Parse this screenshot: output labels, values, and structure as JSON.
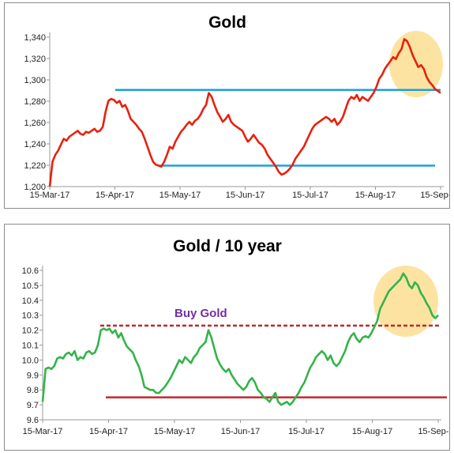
{
  "chart_data": [
    {
      "type": "line",
      "title": "Gold",
      "xlabel": "",
      "ylabel": "",
      "x_tick_labels": [
        "15-Mar-17",
        "15-Apr-17",
        "15-May-17",
        "15-Jun-17",
        "15-Jul-17",
        "15-Aug-17",
        "15-Sep-17"
      ],
      "y_tick_labels": [
        "1,200",
        "1,220",
        "1,240",
        "1,260",
        "1,280",
        "1,300",
        "1,320",
        "1,340"
      ],
      "ylim": [
        1200,
        1350
      ],
      "grid": false,
      "line_color": "#e8210e",
      "series": [
        {
          "values": [
            1200,
            1225,
            1232,
            1236,
            1242,
            1248,
            1246,
            1250,
            1252,
            1254,
            1256,
            1253,
            1252,
            1255,
            1254,
            1256,
            1258,
            1255,
            1256,
            1260,
            1275,
            1286,
            1288,
            1287,
            1284,
            1286,
            1280,
            1282,
            1276,
            1268,
            1265,
            1262,
            1258,
            1255,
            1248,
            1240,
            1232,
            1225,
            1222,
            1221,
            1220,
            1225,
            1232,
            1240,
            1238,
            1245,
            1250,
            1255,
            1258,
            1262,
            1265,
            1262,
            1266,
            1268,
            1272,
            1278,
            1282,
            1294,
            1290,
            1282,
            1275,
            1270,
            1265,
            1268,
            1272,
            1265,
            1262,
            1260,
            1258,
            1256,
            1250,
            1245,
            1248,
            1252,
            1248,
            1244,
            1242,
            1238,
            1232,
            1228,
            1224,
            1220,
            1215,
            1212,
            1213,
            1215,
            1218,
            1222,
            1228,
            1232,
            1236,
            1240,
            1246,
            1252,
            1258,
            1262,
            1264,
            1266,
            1268,
            1270,
            1268,
            1265,
            1268,
            1262,
            1265,
            1270,
            1278,
            1286,
            1290,
            1288,
            1292,
            1286,
            1290,
            1288,
            1286,
            1290,
            1294,
            1300,
            1308,
            1312,
            1318,
            1322,
            1326,
            1330,
            1328,
            1334,
            1338,
            1348,
            1346,
            1340,
            1332,
            1326,
            1320,
            1322,
            1318,
            1310,
            1305,
            1302,
            1298,
            1296,
            1294
          ]
        }
      ],
      "reference_lines": [
        {
          "y": 1297,
          "color": "#1ba1d8"
        },
        {
          "y": 1221,
          "color": "#1ba1d8"
        }
      ],
      "highlight_color": "#fde3a2"
    },
    {
      "type": "line",
      "title": "Gold / 10 year",
      "xlabel": "",
      "ylabel": "",
      "x_tick_labels": [
        "15-Mar-17",
        "15-Apr-17",
        "15-May-17",
        "15-Jun-17",
        "15-Jul-17",
        "15-Aug-17",
        "15-Sep-17"
      ],
      "y_tick_labels": [
        "9.6",
        "9.7",
        "9.8",
        "9.9",
        "10.0",
        "10.1",
        "10.2",
        "10.3",
        "10.4",
        "10.5",
        "10.6"
      ],
      "ylim": [
        9.6,
        10.6
      ],
      "grid": false,
      "line_color": "#33b44a",
      "series": [
        {
          "values": [
            9.72,
            9.94,
            9.95,
            9.94,
            9.96,
            10.01,
            10.02,
            10.01,
            10.04,
            10.05,
            10.03,
            10.06,
            10.0,
            10.02,
            10.01,
            10.05,
            10.06,
            10.04,
            10.05,
            10.1,
            10.2,
            10.21,
            10.2,
            10.21,
            10.18,
            10.2,
            10.15,
            10.18,
            10.13,
            10.09,
            10.07,
            10.05,
            10.0,
            9.96,
            9.9,
            9.82,
            9.81,
            9.8,
            9.8,
            9.78,
            9.78,
            9.8,
            9.82,
            9.85,
            9.88,
            9.92,
            9.96,
            10.0,
            9.98,
            10.02,
            10.0,
            9.98,
            10.02,
            10.04,
            10.08,
            10.1,
            10.12,
            10.2,
            10.15,
            10.08,
            10.01,
            9.97,
            9.94,
            9.92,
            9.94,
            9.9,
            9.87,
            9.84,
            9.82,
            9.8,
            9.82,
            9.86,
            9.88,
            9.85,
            9.8,
            9.78,
            9.75,
            9.74,
            9.72,
            9.75,
            9.78,
            9.72,
            9.7,
            9.71,
            9.72,
            9.7,
            9.72,
            9.75,
            9.78,
            9.82,
            9.85,
            9.9,
            9.95,
            9.98,
            10.02,
            10.04,
            10.06,
            10.04,
            10.0,
            10.03,
            9.98,
            9.96,
            9.98,
            10.02,
            10.06,
            10.12,
            10.16,
            10.18,
            10.14,
            10.12,
            10.15,
            10.16,
            10.15,
            10.18,
            10.22,
            10.26,
            10.34,
            10.38,
            10.42,
            10.46,
            10.48,
            10.5,
            10.52,
            10.54,
            10.58,
            10.55,
            10.5,
            10.48,
            10.52,
            10.5,
            10.45,
            10.42,
            10.38,
            10.35,
            10.3,
            10.28,
            10.3
          ]
        }
      ],
      "reference_lines": [
        {
          "y": 10.23,
          "color": "#c0282d",
          "style": "dashed"
        },
        {
          "y": 9.75,
          "color": "#c0282d",
          "style": "solid"
        }
      ],
      "annotation": {
        "text": "Buy Gold",
        "color": "#7030a0"
      },
      "highlight_color": "#fde3a2"
    }
  ]
}
